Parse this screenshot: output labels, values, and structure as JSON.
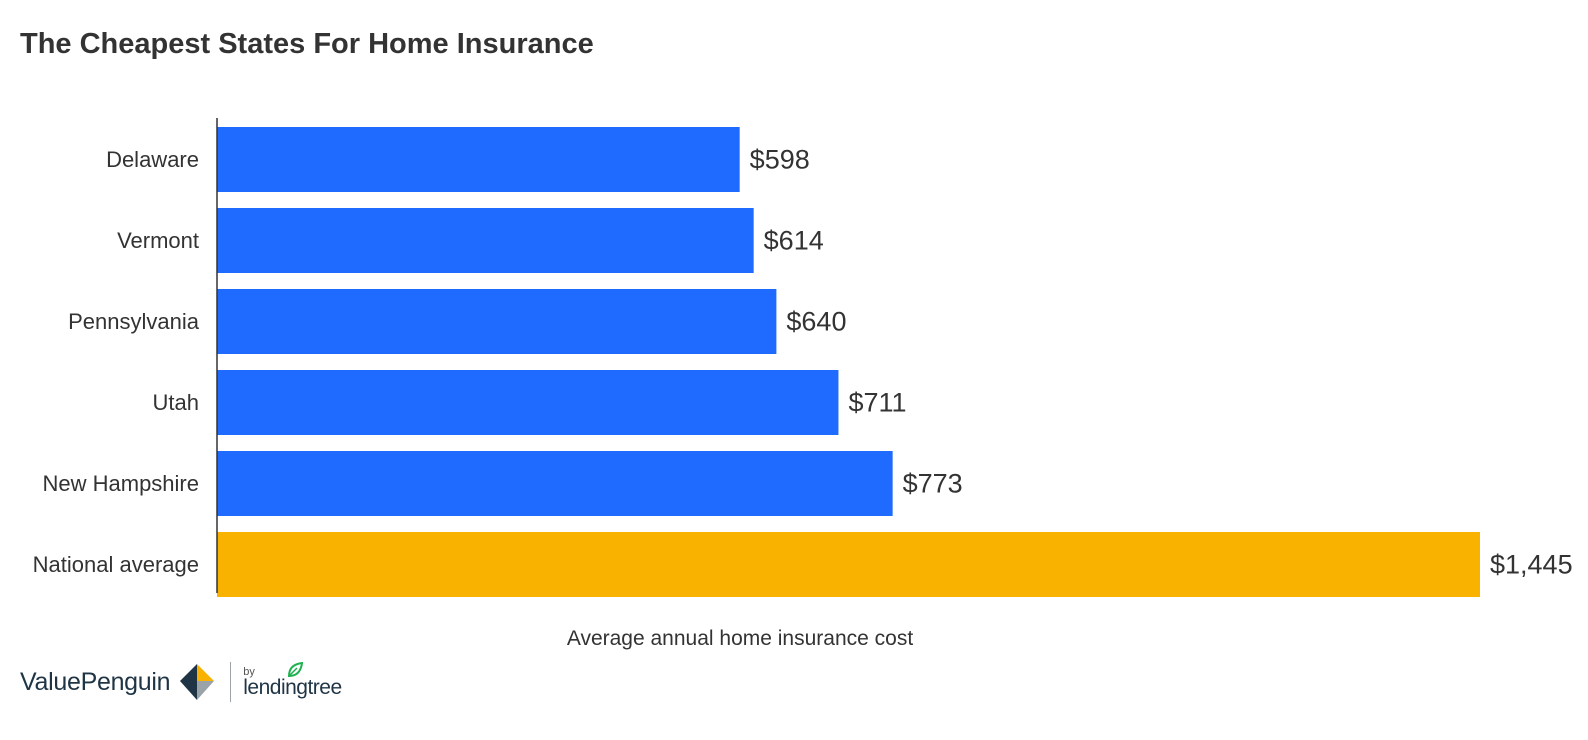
{
  "chart_data": {
    "type": "bar",
    "orientation": "horizontal",
    "title": "The Cheapest States For Home Insurance",
    "xlabel": "Average annual home insurance cost",
    "ylabel": "",
    "categories": [
      "Delaware",
      "Vermont",
      "Pennsylvania",
      "Utah",
      "New Hampshire",
      "National average"
    ],
    "values": [
      598,
      614,
      640,
      711,
      773,
      1445
    ],
    "value_labels": [
      "$598",
      "$614",
      "$640",
      "$711",
      "$773",
      "$1,445"
    ],
    "bar_colors": [
      "#1f6bff",
      "#1f6bff",
      "#1f6bff",
      "#1f6bff",
      "#1f6bff",
      "#f9b200"
    ],
    "xlim": [
      0,
      1445
    ],
    "grid": false,
    "legend": "none"
  },
  "branding": {
    "primary": "ValuePenguin",
    "by": "by",
    "secondary": "lendingtree",
    "accent_color": "#f9b200",
    "dark_color": "#1f3545",
    "leaf_color": "#1fb14f"
  }
}
